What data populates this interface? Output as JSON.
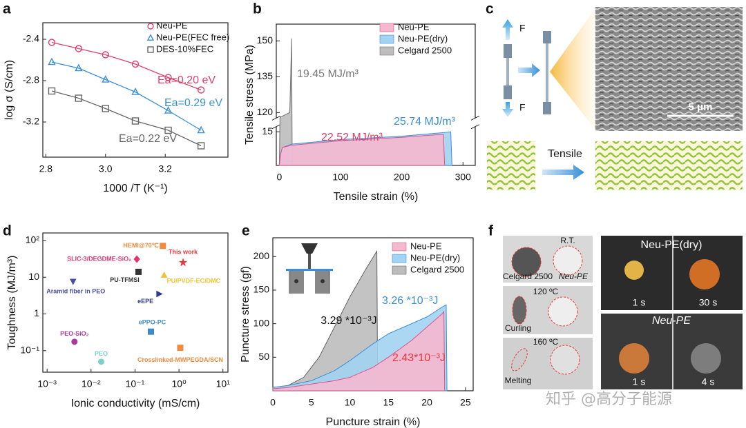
{
  "panel_labels": [
    "a",
    "b",
    "c",
    "d",
    "e",
    "f"
  ],
  "chart_data": [
    {
      "type": "scatter",
      "xlabel": "1000 /T (K⁻¹)",
      "ylabel": "log  σ (S/cm)",
      "xlim": [
        2.79,
        3.41
      ],
      "ylim": [
        -3.54,
        -2.24
      ],
      "xticks": [
        2.8,
        {
          "value": 3,
          "label": "3.0"
        },
        3.2
      ],
      "yticks": [
        -2.4,
        -2.8,
        -3.2
      ],
      "hollow_markers": true,
      "lines": true,
      "legend": true,
      "series": [
        {
          "name": "Neu-PE",
          "color": "#e0406a",
          "marker": "circle",
          "x": [
            2.82,
            2.91,
            3.0,
            3.1,
            3.21,
            3.32
          ],
          "values": [
            -2.43,
            -2.49,
            -2.55,
            -2.64,
            -2.77,
            -2.89
          ]
        },
        {
          "name": "Neu-PE(FEC free)",
          "color": "#3a8fd8",
          "marker": "triangle",
          "x": [
            2.82,
            2.91,
            3.0,
            3.1,
            3.21,
            3.32
          ],
          "values": [
            -2.62,
            -2.68,
            -2.79,
            -2.91,
            -3.09,
            -3.28
          ]
        },
        {
          "name": "DES-10%FEC",
          "color": "#666666",
          "marker": "square",
          "x": [
            2.82,
            2.91,
            3.0,
            3.1,
            3.21,
            3.32
          ],
          "values": [
            -2.9,
            -2.97,
            -3.07,
            -3.19,
            -3.28,
            -3.43
          ]
        }
      ],
      "annotations": [
        {
          "text": "Ea=0.20 eV",
          "color": "#e0406a"
        },
        {
          "text": "Ea=0.29 eV",
          "color": "#3a8fd8"
        },
        {
          "text": "Ea=0.22 eV",
          "color": "#666666"
        }
      ]
    },
    {
      "type": "area",
      "xlabel": "Tensile strain (%)",
      "ylabel": "Tensile stress (MPa)",
      "xlim": [
        -5,
        320
      ],
      "ylim": [
        0,
        157
      ],
      "ybreak": [
        17,
        118
      ],
      "xticks": [
        0,
        100,
        200,
        300
      ],
      "yticks": [
        15,
        120,
        135,
        150
      ],
      "legend": true,
      "series": [
        {
          "name": "Neu-PE",
          "color": "#f5b8cf",
          "edge": "#d9558a",
          "x": [
            0,
            2,
            5,
            20,
            100,
            200,
            265,
            268,
            270
          ],
          "values": [
            0,
            5,
            8,
            9,
            11,
            12.5,
            13.8,
            13.8,
            0
          ]
        },
        {
          "name": "Neu-PE(dry)",
          "color": "#a3d3f2",
          "edge": "#3a8fd8",
          "x": [
            0,
            2,
            5,
            20,
            100,
            200,
            275,
            280,
            282
          ],
          "values": [
            0,
            5,
            8,
            9.5,
            11.5,
            13,
            14.8,
            15,
            0
          ]
        },
        {
          "name": "Celgard 2500",
          "color": "#bdbdbd",
          "edge": "#707070",
          "x": [
            0,
            1,
            17,
            20,
            21
          ],
          "values": [
            0,
            118,
            120,
            151,
            0
          ]
        }
      ],
      "annotations": [
        {
          "text": "19.45 MJ/m³",
          "color": "#777777"
        },
        {
          "text": "22.52 MJ/m³",
          "color": "#e0406a"
        },
        {
          "text": "25.74 MJ/m³",
          "color": "#3a8fd8"
        }
      ]
    },
    {
      "type": "scatter",
      "xlabel": "Ionic conductivity (mS/cm)",
      "ylabel": "Toughness (MJ/m³)",
      "xscale": "log",
      "yscale": "log",
      "xlim": [
        0.0008,
        13
      ],
      "ylim": [
        0.026,
        160
      ],
      "xticks": [
        {
          "value": 0.001,
          "label": "10⁻³"
        },
        {
          "value": 0.01,
          "label": "10⁻²"
        },
        {
          "value": 0.1,
          "label": "10⁻¹"
        },
        {
          "value": 1,
          "label": "10⁰"
        },
        {
          "value": 10,
          "label": "10¹"
        }
      ],
      "yticks": [
        {
          "value": 0.1,
          "label": "10⁻¹"
        },
        1,
        10,
        {
          "value": 100,
          "label": "10²"
        }
      ],
      "hollow_markers": false,
      "lines": false,
      "legend": false,
      "series": [
        {
          "name": "HEMI@70℃",
          "color": "#f08a3c",
          "marker": "square",
          "x": [
            0.43
          ],
          "values": [
            71
          ]
        },
        {
          "name": "SLIC-3/DEGDME-SiO₂",
          "color": "#e0356f",
          "marker": "diamond",
          "x": [
            0.11
          ],
          "values": [
            31
          ]
        },
        {
          "name": "This work",
          "color": "#e8383b",
          "marker": "star",
          "x": [
            1.24
          ],
          "values": [
            25
          ]
        },
        {
          "name": "PU-TFMSI",
          "color": "#333333",
          "marker": "square",
          "x": [
            0.12
          ],
          "values": [
            14
          ]
        },
        {
          "name": "PU/PVDF-EC/DMC",
          "color": "#f2c230",
          "marker": "triangle",
          "x": [
            0.46
          ],
          "values": [
            11.3
          ]
        },
        {
          "name": "Aramid fiber in PEO",
          "color": "#4b4fa0",
          "marker": "triangle-down",
          "x": [
            0.0039
          ],
          "values": [
            7.7
          ]
        },
        {
          "name": "eEPE",
          "color": "#2f3b8f",
          "marker": "triangle-right",
          "x": [
            0.35
          ],
          "values": [
            3.5
          ]
        },
        {
          "name": "ePPO-PC",
          "color": "#3d8ac8",
          "marker": "square",
          "x": [
            0.23
          ],
          "values": [
            0.33
          ]
        },
        {
          "name": "PEO-SiO₂",
          "color": "#a83a9a",
          "marker": "circle",
          "x": [
            0.0042
          ],
          "values": [
            0.175
          ]
        },
        {
          "name": "PEO",
          "color": "#7fd0cc",
          "marker": "circle",
          "x": [
            0.017
          ],
          "values": [
            0.05
          ]
        },
        {
          "name": "Crosslinked-MWPEGDA/SCN",
          "color": "#f08a3c",
          "marker": "square",
          "x": [
            1.07
          ],
          "values": [
            0.12
          ]
        }
      ]
    },
    {
      "type": "area",
      "xlabel": "Puncture strain (%)",
      "ylabel": "Puncture stress (gf)",
      "xlim": [
        0,
        26
      ],
      "ylim": [
        0,
        228
      ],
      "xticks": [
        0,
        5,
        10,
        15,
        20,
        25
      ],
      "yticks": [
        50,
        100,
        150,
        200
      ],
      "legend": true,
      "series": [
        {
          "name": "Neu-PE",
          "color": "#f5b8cf",
          "edge": "#d9558a",
          "x": [
            0,
            2,
            5,
            8,
            10,
            13,
            15,
            18,
            20,
            22,
            22.2,
            22.3
          ],
          "values": [
            3,
            5,
            10,
            15,
            20,
            35,
            50,
            75,
            95,
            115,
            118,
            0
          ]
        },
        {
          "name": "Neu-PE(dry)",
          "color": "#a3d3f2",
          "edge": "#3a8fd8",
          "x": [
            0,
            2,
            5,
            8,
            10,
            13,
            15,
            18,
            20,
            22,
            22.5,
            22.6
          ],
          "values": [
            5,
            8,
            15,
            30,
            45,
            70,
            85,
            100,
            110,
            125,
            128,
            0
          ]
        },
        {
          "name": "Celgard 2500",
          "color": "#bdbdbd",
          "edge": "#606060",
          "x": [
            0,
            2,
            4,
            6,
            8,
            10,
            12,
            13.5,
            13.6
          ],
          "values": [
            5,
            8,
            20,
            50,
            95,
            140,
            180,
            208,
            0
          ]
        }
      ],
      "annotations": [
        {
          "text": "3.29 *10⁻³J",
          "color": "#111111"
        },
        {
          "text": "3.26 *10⁻³J",
          "color": "#3a8fd8"
        },
        {
          "text": "2.43*10⁻³J",
          "color": "#e8383b"
        }
      ]
    }
  ],
  "panel_c": {
    "force_top": "F",
    "force_bottom": "F",
    "scale_bar": "5 μm",
    "arrow_label": "Tensile"
  },
  "panel_f": {
    "rt": "R.T.",
    "celgard": "Celgard 2500",
    "neu_pe": "Neu-PE",
    "t120": "120 ºC",
    "curling": "Curling",
    "t160": "160 ºC",
    "melting": "Melting",
    "top_title": "Neu-PE(dry)",
    "top_t1": "1 s",
    "top_t2": "30 s",
    "bottom_title": "Neu-PE",
    "bottom_t1": "1 s",
    "bottom_t2": "4 s"
  },
  "watermark": "知乎 @高分子能源"
}
